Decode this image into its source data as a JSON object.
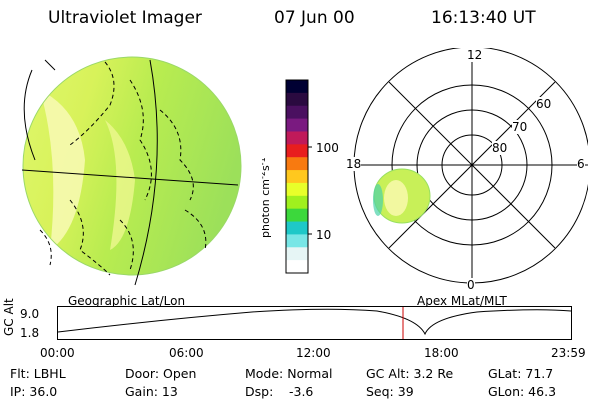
{
  "header": {
    "instrument": "Ultraviolet Imager",
    "date": "07 Jun 00",
    "time": "16:13:40 UT"
  },
  "colorbar": {
    "unit_label": "photon cm",
    "unit_sup1": "-2",
    "unit_mid": "s",
    "unit_sup2": "-1",
    "tick_100": "100",
    "tick_10": "10",
    "colors": [
      "#000033",
      "#2a0a40",
      "#4a1060",
      "#7a1a80",
      "#c01a5a",
      "#e81e1e",
      "#f87a10",
      "#ffc81e",
      "#e8ff2a",
      "#a0f01e",
      "#3cd83c",
      "#1ec8c8",
      "#78e6e6",
      "#e6f5f5",
      "#ffffff"
    ]
  },
  "geo_map": {
    "label": "Geographic Lat/Lon",
    "fill_color": "#a8e84a",
    "bright_color": "#f4f8a0"
  },
  "polar": {
    "label": "Apex MLat/MLT",
    "mlt_labels": {
      "top": "12",
      "left": "18",
      "right": "6",
      "bottom": "0"
    },
    "lat_labels": [
      "60",
      "70",
      "80"
    ]
  },
  "altitude_plot": {
    "ylabel": "GC Alt",
    "yticks": [
      "9.0",
      "1.8"
    ],
    "xticks": [
      "00:00",
      "06:00",
      "12:00",
      "18:00",
      "23:59"
    ],
    "marker_color": "#cc0000"
  },
  "status": {
    "flt": "Flt: LBHL",
    "ip": "IP: 36.0",
    "door": "Door: Open",
    "gain": "Gain: 13",
    "mode": "Mode: Normal",
    "dsp_label": "Dsp:",
    "dsp_value": "-3.6",
    "gc_alt": "GC Alt: 3.2 Re",
    "seq": "Seq: 39",
    "glat": "GLat: 71.7",
    "glon": "GLon: 46.3"
  }
}
